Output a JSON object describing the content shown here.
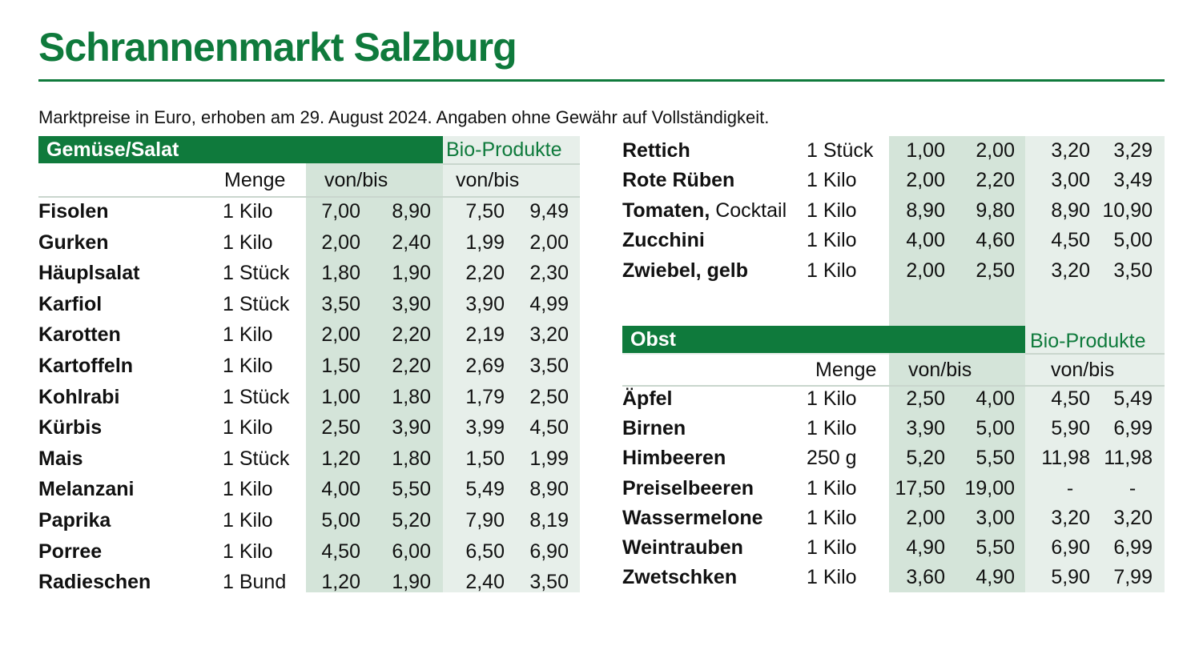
{
  "title": "Schrannenmarkt Salzburg",
  "subtitle": "Marktpreise in Euro, erhoben am 29. August 2024. Angaben ohne Gewähr auf Vollständigkeit.",
  "colors": {
    "brand": "#0f7a3c",
    "price_bg": "#d4e4d9",
    "bio_bg": "#e7efea"
  },
  "vegetables": {
    "section_label": "Gemüse/Salat",
    "bio_label": "Bio-Produkte",
    "menge_header": "Menge",
    "price_header": "von/bis",
    "bio_header": "von/bis",
    "rows": [
      {
        "name": "Fisolen",
        "qty": "1 Kilo",
        "from": "7,00",
        "to": "8,90",
        "bio_from": "7,50",
        "bio_to": "9,49"
      },
      {
        "name": "Gurken",
        "qty": "1 Kilo",
        "from": "2,00",
        "to": "2,40",
        "bio_from": "1,99",
        "bio_to": "2,00"
      },
      {
        "name": "Häuplsalat",
        "qty": "1 Stück",
        "from": "1,80",
        "to": "1,90",
        "bio_from": "2,20",
        "bio_to": "2,30"
      },
      {
        "name": "Karfiol",
        "qty": "1 Stück",
        "from": "3,50",
        "to": "3,90",
        "bio_from": "3,90",
        "bio_to": "4,99"
      },
      {
        "name": "Karotten",
        "qty": "1 Kilo",
        "from": "2,00",
        "to": "2,20",
        "bio_from": "2,19",
        "bio_to": "3,20"
      },
      {
        "name": "Kartoffeln",
        "qty": "1 Kilo",
        "from": "1,50",
        "to": "2,20",
        "bio_from": "2,69",
        "bio_to": "3,50"
      },
      {
        "name": "Kohlrabi",
        "qty": "1 Stück",
        "from": "1,00",
        "to": "1,80",
        "bio_from": "1,79",
        "bio_to": "2,50"
      },
      {
        "name": "Kürbis",
        "qty": "1 Kilo",
        "from": "2,50",
        "to": "3,90",
        "bio_from": "3,99",
        "bio_to": "4,50"
      },
      {
        "name": "Mais",
        "qty": "1 Stück",
        "from": "1,20",
        "to": "1,80",
        "bio_from": "1,50",
        "bio_to": "1,99"
      },
      {
        "name": "Melanzani",
        "qty": "1 Kilo",
        "from": "4,00",
        "to": "5,50",
        "bio_from": "5,49",
        "bio_to": "8,90"
      },
      {
        "name": "Paprika",
        "qty": "1 Kilo",
        "from": "5,00",
        "to": "5,20",
        "bio_from": "7,90",
        "bio_to": "8,19"
      },
      {
        "name": "Porree",
        "qty": "1 Kilo",
        "from": "4,50",
        "to": "6,00",
        "bio_from": "6,50",
        "bio_to": "6,90"
      },
      {
        "name": "Radieschen",
        "qty": "1 Bund",
        "from": "1,20",
        "to": "1,90",
        "bio_from": "2,40",
        "bio_to": "3,50"
      }
    ],
    "continued_rows": [
      {
        "name": "Rettich",
        "extra": "",
        "qty": "1 Stück",
        "from": "1,00",
        "to": "2,00",
        "bio_from": "3,20",
        "bio_to": "3,29"
      },
      {
        "name": "Rote Rüben",
        "extra": "",
        "qty": "1 Kilo",
        "from": "2,00",
        "to": "2,20",
        "bio_from": "3,00",
        "bio_to": "3,49"
      },
      {
        "name": "Tomaten,",
        "extra": " Cocktail",
        "qty": "1 Kilo",
        "from": "8,90",
        "to": "9,80",
        "bio_from": "8,90",
        "bio_to": "10,90"
      },
      {
        "name": "Zucchini",
        "extra": "",
        "qty": "1 Kilo",
        "from": "4,00",
        "to": "4,60",
        "bio_from": "4,50",
        "bio_to": "5,00"
      },
      {
        "name": "Zwiebel, gelb",
        "extra": "",
        "qty": "1 Kilo",
        "from": "2,00",
        "to": "2,50",
        "bio_from": "3,20",
        "bio_to": "3,50"
      }
    ]
  },
  "fruit": {
    "section_label": "Obst",
    "bio_label": "Bio-Produkte",
    "menge_header": "Menge",
    "price_header": "von/bis",
    "bio_header": "von/bis",
    "rows": [
      {
        "name": "Äpfel",
        "extra": "",
        "qty": "1 Kilo",
        "from": "2,50",
        "to": "4,00",
        "bio_from": "4,50",
        "bio_to": "5,49"
      },
      {
        "name": "Birnen",
        "extra": "",
        "qty": "1 Kilo",
        "from": "3,90",
        "to": "5,00",
        "bio_from": "5,90",
        "bio_to": "6,99"
      },
      {
        "name": "Himbeeren",
        "extra": "",
        "qty": "250 g",
        "from": "5,20",
        "to": "5,50",
        "bio_from": "11,98",
        "bio_to": "11,98"
      },
      {
        "name": "Preiselbeeren",
        "extra": "",
        "qty": "1 Kilo",
        "from": "17,50",
        "to": "19,00",
        "bio_from": "-",
        "bio_to": "-"
      },
      {
        "name": "Wassermelone",
        "extra": "",
        "qty": "1 Kilo",
        "from": "2,00",
        "to": "3,00",
        "bio_from": "3,20",
        "bio_to": "3,20"
      },
      {
        "name": "Weintrauben",
        "extra": "",
        "qty": "1 Kilo",
        "from": "4,90",
        "to": "5,50",
        "bio_from": "6,90",
        "bio_to": "6,99"
      },
      {
        "name": "Zwetschken",
        "extra": "",
        "qty": "1 Kilo",
        "from": "3,60",
        "to": "4,90",
        "bio_from": "5,90",
        "bio_to": "7,99"
      }
    ]
  }
}
